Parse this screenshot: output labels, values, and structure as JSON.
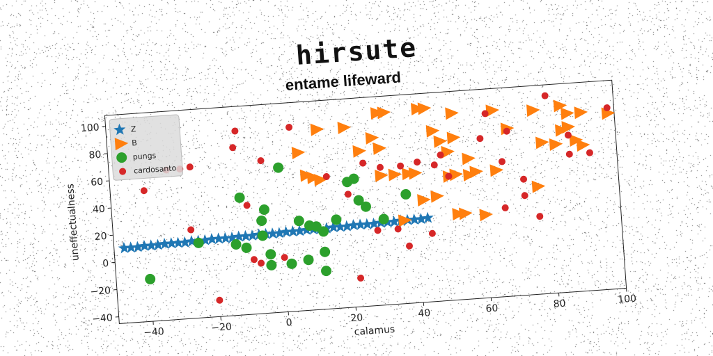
{
  "title": "hirsute",
  "chart_data": {
    "type": "scatter",
    "title": "entame lifeward",
    "xlabel": "calamus",
    "ylabel": "uneffectualness",
    "xlim": [
      -50,
      100
    ],
    "ylim": [
      -45,
      108
    ],
    "xticks": [
      -40,
      -20,
      0,
      20,
      40,
      60,
      80,
      100
    ],
    "yticks": [
      -40,
      -20,
      0,
      20,
      40,
      60,
      80,
      100
    ],
    "grid": false,
    "legend_position": "top-left",
    "series": [
      {
        "name": "Z",
        "marker": "star",
        "color": "#1f77b4",
        "points": [
          [
            -47,
            10
          ],
          [
            -45,
            10
          ],
          [
            -43,
            10
          ],
          [
            -41,
            10.5
          ],
          [
            -39,
            10.5
          ],
          [
            -37,
            10.5
          ],
          [
            -35,
            11
          ],
          [
            -33,
            11
          ],
          [
            -31,
            11
          ],
          [
            -29,
            11
          ],
          [
            -27,
            11.5
          ],
          [
            -25,
            11.5
          ],
          [
            -23,
            11.5
          ],
          [
            -21,
            12
          ],
          [
            -19,
            12
          ],
          [
            -17,
            12
          ],
          [
            -15,
            12
          ],
          [
            -13,
            12.5
          ],
          [
            -11,
            12.5
          ],
          [
            -9,
            12.5
          ],
          [
            -7,
            13
          ],
          [
            -5,
            13
          ],
          [
            -3,
            13
          ],
          [
            -1,
            13
          ],
          [
            1,
            13.5
          ],
          [
            3,
            13.5
          ],
          [
            5,
            13.5
          ],
          [
            7,
            14
          ],
          [
            9,
            14
          ],
          [
            11,
            14
          ],
          [
            13,
            14
          ],
          [
            15,
            14.5
          ],
          [
            17,
            14.5
          ],
          [
            19,
            14.5
          ],
          [
            21,
            15
          ],
          [
            23,
            15
          ],
          [
            25,
            15
          ],
          [
            27,
            15
          ],
          [
            29,
            15.5
          ],
          [
            31,
            15.5
          ],
          [
            33,
            15.5
          ],
          [
            35,
            16
          ],
          [
            37,
            16
          ],
          [
            39,
            16
          ],
          [
            41,
            16
          ],
          [
            43,
            16.5
          ]
        ]
      },
      {
        "name": "B",
        "marker": "triangle-right",
        "color": "#ff7f0e",
        "points": [
          [
            12,
            87
          ],
          [
            20,
            87
          ],
          [
            30,
            96
          ],
          [
            32,
            96
          ],
          [
            42,
            97
          ],
          [
            44,
            97
          ],
          [
            52,
            92
          ],
          [
            46,
            80
          ],
          [
            48,
            72
          ],
          [
            28,
            78
          ],
          [
            30,
            70
          ],
          [
            6,
            71
          ],
          [
            24,
            69
          ],
          [
            8,
            54
          ],
          [
            10,
            52
          ],
          [
            12,
            50
          ],
          [
            30,
            50
          ],
          [
            34,
            50
          ],
          [
            38,
            50
          ],
          [
            40,
            50
          ],
          [
            50,
            46
          ],
          [
            52,
            47
          ],
          [
            56,
            46
          ],
          [
            58,
            48
          ],
          [
            64,
            48
          ],
          [
            78,
            66
          ],
          [
            82,
            64
          ],
          [
            88,
            66
          ],
          [
            90,
            62
          ],
          [
            84,
            74
          ],
          [
            86,
            76
          ],
          [
            68,
            78
          ],
          [
            52,
            74
          ],
          [
            50,
            64
          ],
          [
            56,
            58
          ],
          [
            42,
            30
          ],
          [
            46,
            32
          ],
          [
            36,
            16
          ],
          [
            52,
            18
          ],
          [
            60,
            16
          ],
          [
            76,
            90
          ],
          [
            64,
            92
          ],
          [
            84,
            92
          ],
          [
            86,
            86
          ],
          [
            98,
            84
          ],
          [
            90,
            86
          ],
          [
            76,
            34
          ],
          [
            54,
            18
          ]
        ]
      },
      {
        "name": "pungs",
        "marker": "circle",
        "color": "#2ca02c",
        "points": [
          [
            -40,
            -14
          ],
          [
            0,
            61
          ],
          [
            -12,
            41
          ],
          [
            -5,
            31
          ],
          [
            -6,
            23
          ],
          [
            -6,
            12
          ],
          [
            -25,
            10
          ],
          [
            -14,
            7
          ],
          [
            -11,
            4
          ],
          [
            -4,
            -2
          ],
          [
            -4,
            -10
          ],
          [
            2,
            -10
          ],
          [
            7,
            -8
          ],
          [
            12,
            -3
          ],
          [
            12,
            -17
          ],
          [
            5,
            21
          ],
          [
            8,
            17
          ],
          [
            10,
            16
          ],
          [
            12,
            12
          ],
          [
            16,
            20
          ],
          [
            20,
            47
          ],
          [
            22,
            49
          ],
          [
            23,
            33
          ],
          [
            25,
            28
          ],
          [
            30,
            18
          ],
          [
            37,
            35
          ]
        ]
      },
      {
        "name": "cardosanto",
        "marker": "circle-small",
        "color": "#d62728",
        "points": [
          [
            -40,
            51
          ],
          [
            -33,
            65
          ],
          [
            -29,
            65
          ],
          [
            -26,
            66
          ],
          [
            -27,
            20
          ],
          [
            -20,
            -33
          ],
          [
            -13,
            78
          ],
          [
            -12,
            90
          ],
          [
            -10,
            35
          ],
          [
            -9,
            -5
          ],
          [
            -7,
            -8
          ],
          [
            -5,
            67
          ],
          [
            0,
            -5
          ],
          [
            4,
            90
          ],
          [
            14,
            52
          ],
          [
            20,
            38
          ],
          [
            22,
            -24
          ],
          [
            25,
            60
          ],
          [
            30,
            56
          ],
          [
            36,
            56
          ],
          [
            37,
            -3
          ],
          [
            41,
            58
          ],
          [
            44,
            5
          ],
          [
            46,
            55
          ],
          [
            48,
            62
          ],
          [
            50,
            46
          ],
          [
            60,
            72
          ],
          [
            62,
            90
          ],
          [
            66,
            54
          ],
          [
            68,
            76
          ],
          [
            72,
            40
          ],
          [
            76,
            12
          ],
          [
            86,
            70
          ],
          [
            86,
            56
          ],
          [
            92,
            56
          ],
          [
            98,
            88
          ],
          [
            104,
            90
          ],
          [
            110,
            110
          ],
          [
            80,
            100
          ],
          [
            34,
            10
          ],
          [
            28,
            10
          ],
          [
            72,
            28
          ],
          [
            66,
            20
          ]
        ]
      }
    ]
  }
}
